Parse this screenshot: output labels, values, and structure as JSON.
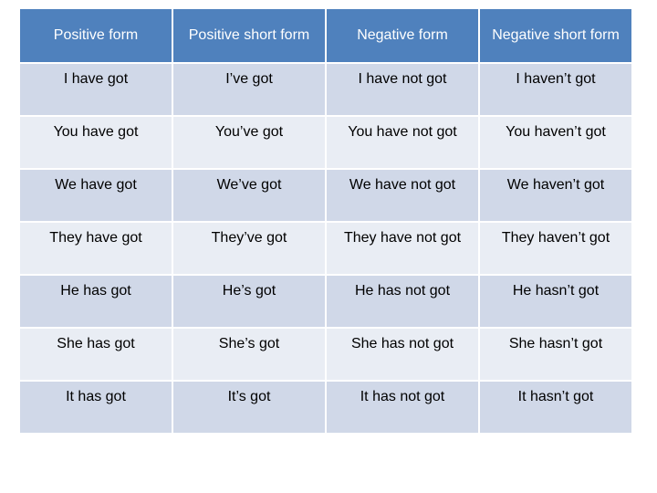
{
  "table": {
    "header": [
      "Positive form",
      "Positive short form",
      "Negative form",
      "Negative short form"
    ],
    "rows": [
      [
        "I have got",
        "I’ve got",
        "I have not got",
        "I haven’t got"
      ],
      [
        "You have got",
        "You’ve got",
        "You have not got",
        "You haven’t got"
      ],
      [
        "We have got",
        "We’ve got",
        "We have not got",
        "We haven’t got"
      ],
      [
        "They have got",
        "They’ve got",
        "They have not got",
        "They haven’t got"
      ],
      [
        "He has got",
        "He’s got",
        "He has not got",
        "He hasn’t got"
      ],
      [
        "She has got",
        "She’s got",
        "She has not got",
        "She hasn’t got"
      ],
      [
        "It has got",
        "It’s got",
        "It has not got",
        "It hasn’t got"
      ]
    ]
  }
}
